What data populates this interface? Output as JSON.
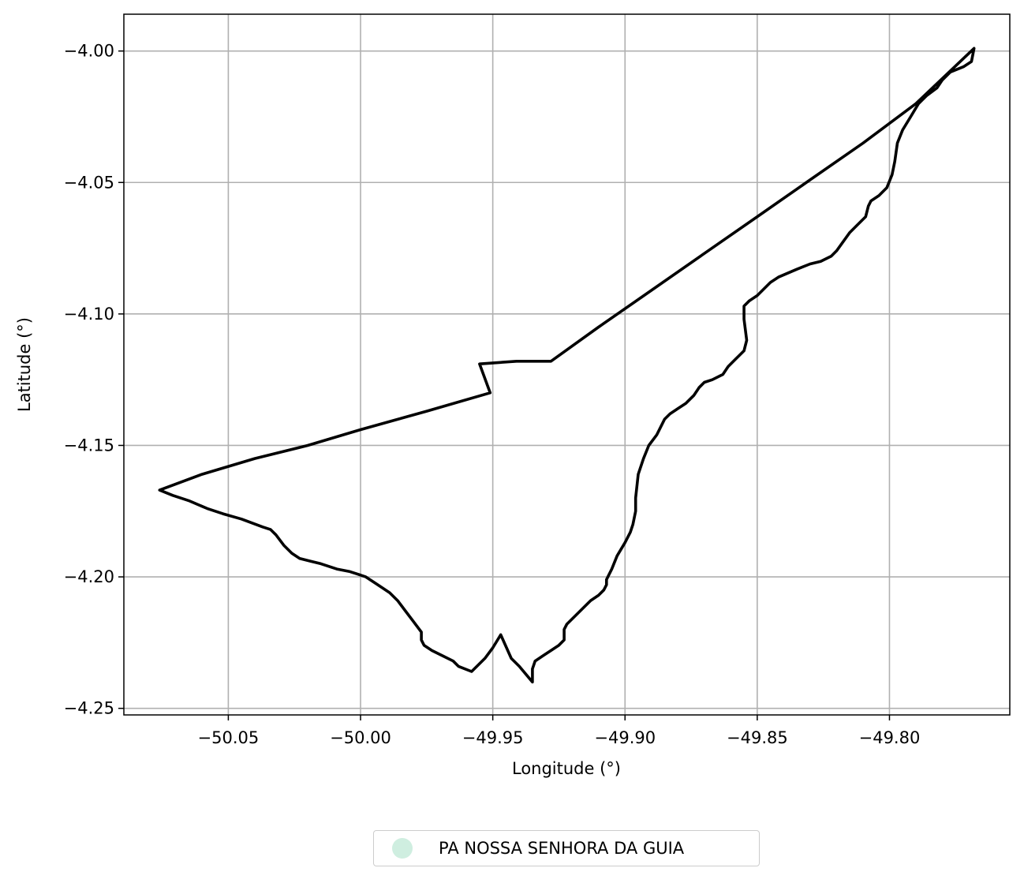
{
  "chart_data": {
    "type": "line",
    "title": "",
    "xlabel": "Longitude (°)",
    "ylabel": "Latitude (°)",
    "xlim": [
      -50.0895,
      -49.7545
    ],
    "ylim": [
      -4.2525,
      -3.986
    ],
    "grid": true,
    "x_ticks": [
      -50.05,
      -50.0,
      -49.95,
      -49.9,
      -49.85,
      -49.8
    ],
    "x_tick_labels": [
      "−50.05",
      "−50.00",
      "−49.95",
      "−49.90",
      "−49.85",
      "−49.80"
    ],
    "y_ticks": [
      -4.0,
      -4.05,
      -4.1,
      -4.15,
      -4.2,
      -4.25
    ],
    "y_tick_labels": [
      "−4.00",
      "−4.05",
      "−4.10",
      "−4.15",
      "−4.20",
      "−4.25"
    ],
    "legend": {
      "placement": "bottom-center-outside",
      "entries": [
        {
          "label": "PA NOSSA SENHORA DA GUIA",
          "color": "#cfeee0"
        }
      ]
    },
    "series": [
      {
        "name": "PA NOSSA SENHORA DA GUIA",
        "color": "#000000",
        "points": [
          [
            -49.768,
            -3.999
          ],
          [
            -49.769,
            -4.004
          ],
          [
            -49.772,
            -4.006
          ],
          [
            -49.777,
            -4.008
          ],
          [
            -49.78,
            -4.011
          ],
          [
            -49.782,
            -4.014
          ],
          [
            -49.786,
            -4.017
          ],
          [
            -49.789,
            -4.02
          ],
          [
            -49.792,
            -4.025
          ],
          [
            -49.795,
            -4.03
          ],
          [
            -49.797,
            -4.035
          ],
          [
            -49.798,
            -4.042
          ],
          [
            -49.799,
            -4.047
          ],
          [
            -49.801,
            -4.052
          ],
          [
            -49.804,
            -4.055
          ],
          [
            -49.807,
            -4.057
          ],
          [
            -49.808,
            -4.059
          ],
          [
            -49.809,
            -4.063
          ],
          [
            -49.812,
            -4.066
          ],
          [
            -49.815,
            -4.069
          ],
          [
            -49.82,
            -4.076
          ],
          [
            -49.822,
            -4.078
          ],
          [
            -49.826,
            -4.08
          ],
          [
            -49.83,
            -4.081
          ],
          [
            -49.835,
            -4.083
          ],
          [
            -49.842,
            -4.086
          ],
          [
            -49.845,
            -4.088
          ],
          [
            -49.85,
            -4.093
          ],
          [
            -49.853,
            -4.095
          ],
          [
            -49.855,
            -4.097
          ],
          [
            -49.855,
            -4.102
          ],
          [
            -49.854,
            -4.11
          ],
          [
            -49.855,
            -4.114
          ],
          [
            -49.858,
            -4.117
          ],
          [
            -49.861,
            -4.12
          ],
          [
            -49.863,
            -4.123
          ],
          [
            -49.867,
            -4.125
          ],
          [
            -49.87,
            -4.126
          ],
          [
            -49.872,
            -4.128
          ],
          [
            -49.874,
            -4.131
          ],
          [
            -49.877,
            -4.134
          ],
          [
            -49.88,
            -4.136
          ],
          [
            -49.883,
            -4.138
          ],
          [
            -49.885,
            -4.14
          ],
          [
            -49.888,
            -4.146
          ],
          [
            -49.891,
            -4.15
          ],
          [
            -49.893,
            -4.155
          ],
          [
            -49.895,
            -4.161
          ],
          [
            -49.896,
            -4.17
          ],
          [
            -49.896,
            -4.175
          ],
          [
            -49.897,
            -4.18
          ],
          [
            -49.898,
            -4.183
          ],
          [
            -49.9,
            -4.187
          ],
          [
            -49.903,
            -4.192
          ],
          [
            -49.905,
            -4.197
          ],
          [
            -49.907,
            -4.201
          ],
          [
            -49.907,
            -4.203
          ],
          [
            -49.908,
            -4.205
          ],
          [
            -49.91,
            -4.207
          ],
          [
            -49.913,
            -4.209
          ],
          [
            -49.917,
            -4.213
          ],
          [
            -49.92,
            -4.216
          ],
          [
            -49.922,
            -4.218
          ],
          [
            -49.923,
            -4.22
          ],
          [
            -49.923,
            -4.224
          ],
          [
            -49.925,
            -4.226
          ],
          [
            -49.928,
            -4.228
          ],
          [
            -49.931,
            -4.23
          ],
          [
            -49.934,
            -4.232
          ],
          [
            -49.935,
            -4.235
          ],
          [
            -49.935,
            -4.24
          ],
          [
            -49.94,
            -4.234
          ],
          [
            -49.943,
            -4.231
          ],
          [
            -49.947,
            -4.222
          ],
          [
            -49.95,
            -4.227
          ],
          [
            -49.953,
            -4.231
          ],
          [
            -49.958,
            -4.236
          ],
          [
            -49.963,
            -4.234
          ],
          [
            -49.965,
            -4.232
          ],
          [
            -49.969,
            -4.23
          ],
          [
            -49.973,
            -4.228
          ],
          [
            -49.976,
            -4.226
          ],
          [
            -49.977,
            -4.224
          ],
          [
            -49.977,
            -4.221
          ],
          [
            -49.98,
            -4.217
          ],
          [
            -49.983,
            -4.213
          ],
          [
            -49.986,
            -4.209
          ],
          [
            -49.989,
            -4.206
          ],
          [
            -49.992,
            -4.204
          ],
          [
            -49.995,
            -4.202
          ],
          [
            -49.998,
            -4.2
          ],
          [
            -50.001,
            -4.199
          ],
          [
            -50.004,
            -4.198
          ],
          [
            -50.009,
            -4.197
          ],
          [
            -50.015,
            -4.195
          ],
          [
            -50.019,
            -4.194
          ],
          [
            -50.023,
            -4.193
          ],
          [
            -50.026,
            -4.191
          ],
          [
            -50.029,
            -4.188
          ],
          [
            -50.032,
            -4.184
          ],
          [
            -50.034,
            -4.182
          ],
          [
            -50.037,
            -4.181
          ],
          [
            -50.045,
            -4.178
          ],
          [
            -50.052,
            -4.176
          ],
          [
            -50.058,
            -4.174
          ],
          [
            -50.065,
            -4.171
          ],
          [
            -50.071,
            -4.169
          ],
          [
            -50.076,
            -4.167
          ],
          [
            -50.06,
            -4.161
          ],
          [
            -50.04,
            -4.155
          ],
          [
            -50.02,
            -4.15
          ],
          [
            -50.0,
            -4.144
          ],
          [
            -49.975,
            -4.137
          ],
          [
            -49.951,
            -4.13
          ],
          [
            -49.955,
            -4.119
          ],
          [
            -49.941,
            -4.118
          ],
          [
            -49.928,
            -4.118
          ],
          [
            -49.91,
            -4.105
          ],
          [
            -49.89,
            -4.091
          ],
          [
            -49.87,
            -4.077
          ],
          [
            -49.85,
            -4.063
          ],
          [
            -49.83,
            -4.049
          ],
          [
            -49.81,
            -4.035
          ],
          [
            -49.79,
            -4.02
          ],
          [
            -49.768,
            -3.999
          ]
        ]
      }
    ]
  }
}
